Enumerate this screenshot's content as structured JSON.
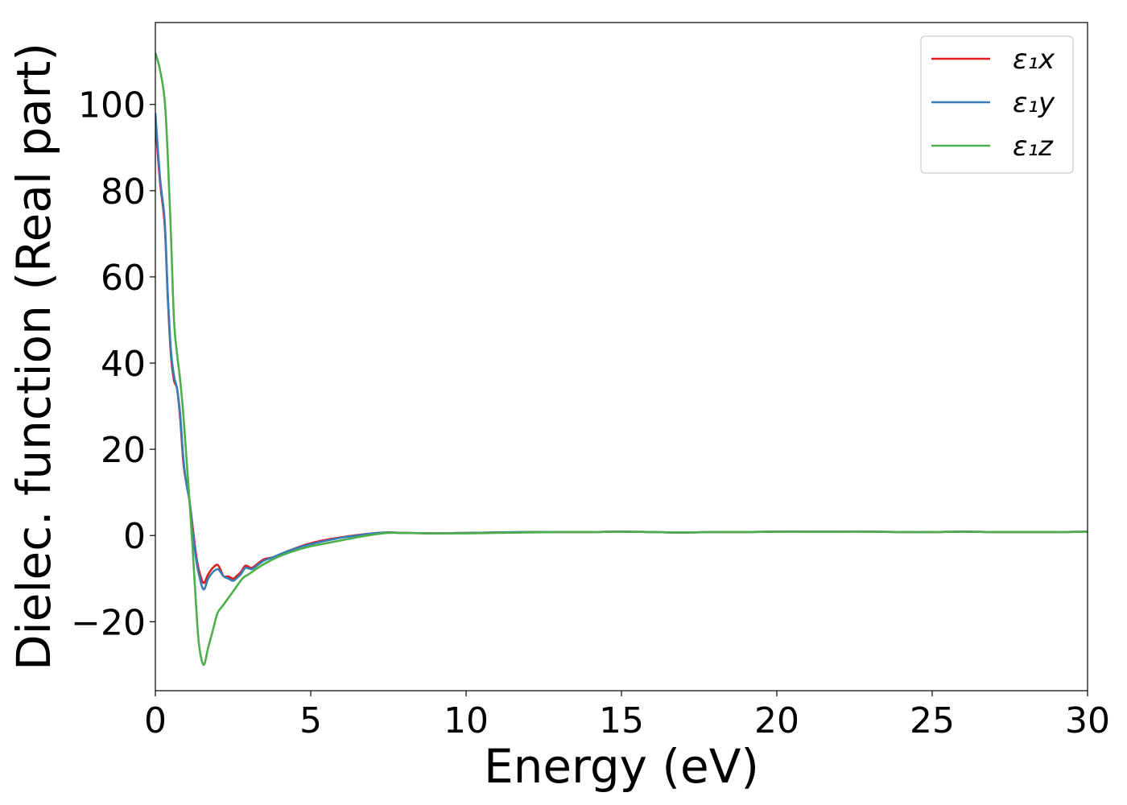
{
  "chart_data": {
    "type": "line",
    "xlabel": "Energy (eV)",
    "ylabel": "Dielec. function (Real part)",
    "xlim": [
      0,
      30
    ],
    "ylim": [
      -36,
      119
    ],
    "xticks": [
      0,
      5,
      10,
      15,
      20,
      25,
      30
    ],
    "xtick_labels": [
      "0",
      "5",
      "10",
      "15",
      "20",
      "25",
      "30"
    ],
    "yticks": [
      -20,
      0,
      20,
      40,
      60,
      80,
      100
    ],
    "ytick_labels": [
      "−20",
      "0",
      "20",
      "40",
      "60",
      "80",
      "100"
    ],
    "grid": false,
    "legend_position": "top-right",
    "series": [
      {
        "name": "ε₁x",
        "color": "#e41a1c",
        "x": [
          0,
          0.15,
          0.3,
          0.4,
          0.5,
          0.6,
          0.7,
          0.8,
          0.9,
          1.0,
          1.1,
          1.2,
          1.3,
          1.4,
          1.55,
          1.7,
          1.85,
          2.0,
          2.1,
          2.2,
          2.35,
          2.5,
          2.6,
          2.75,
          2.9,
          3.1,
          3.3,
          3.5,
          3.8,
          4.2,
          4.6,
          5.0,
          5.5,
          6.0,
          6.5,
          7.0,
          7.5,
          8,
          9,
          10,
          11,
          12,
          13,
          14,
          15,
          16,
          17,
          18,
          19,
          20,
          21,
          22,
          23,
          24,
          25,
          26,
          27,
          28,
          29,
          30
        ],
        "values": [
          96,
          82,
          72,
          55,
          42,
          36,
          34,
          27,
          17,
          12,
          8,
          2,
          -4,
          -8,
          -11,
          -9,
          -7.5,
          -6.8,
          -8,
          -9.5,
          -9.5,
          -10,
          -9.5,
          -8.5,
          -7,
          -7.5,
          -6.5,
          -5.5,
          -5,
          -3.8,
          -2.7,
          -1.8,
          -1,
          -0.4,
          0.1,
          0.5,
          0.7,
          0.6,
          0.5,
          0.6,
          0.7,
          0.8,
          0.8,
          0.8,
          0.9,
          0.8,
          0.7,
          0.8,
          0.8,
          0.9,
          0.9,
          0.9,
          0.9,
          0.8,
          0.8,
          0.9,
          0.8,
          0.8,
          0.8,
          0.9
        ]
      },
      {
        "name": "ε₁y",
        "color": "#377eb8",
        "x": [
          0,
          0.15,
          0.3,
          0.4,
          0.5,
          0.6,
          0.7,
          0.8,
          0.9,
          1.0,
          1.1,
          1.2,
          1.3,
          1.4,
          1.55,
          1.7,
          1.85,
          2.0,
          2.1,
          2.2,
          2.35,
          2.5,
          2.6,
          2.75,
          2.9,
          3.1,
          3.3,
          3.5,
          3.8,
          4.2,
          4.6,
          5.0,
          5.5,
          6.0,
          6.5,
          7.0,
          7.5,
          8,
          9,
          10,
          11,
          12,
          13,
          14,
          15,
          16,
          17,
          18,
          19,
          20,
          21,
          22,
          23,
          24,
          25,
          26,
          27,
          28,
          29,
          30
        ],
        "values": [
          98,
          83,
          73,
          56,
          43,
          37,
          34,
          28,
          18,
          12,
          8,
          1,
          -5,
          -9,
          -12.5,
          -10,
          -8.5,
          -7.8,
          -8.5,
          -9.5,
          -10,
          -10.5,
          -10,
          -9,
          -7.5,
          -7.8,
          -6.8,
          -5.8,
          -5,
          -3.8,
          -2.8,
          -2,
          -1.2,
          -0.5,
          0,
          0.5,
          0.7,
          0.6,
          0.5,
          0.6,
          0.7,
          0.8,
          0.8,
          0.8,
          0.9,
          0.8,
          0.7,
          0.8,
          0.8,
          0.9,
          0.9,
          0.9,
          0.9,
          0.8,
          0.8,
          0.9,
          0.8,
          0.8,
          0.8,
          0.9
        ]
      },
      {
        "name": "ε₁z",
        "color": "#4daf4a",
        "x": [
          0,
          0.15,
          0.3,
          0.4,
          0.5,
          0.6,
          0.7,
          0.8,
          0.9,
          1.0,
          1.1,
          1.2,
          1.3,
          1.4,
          1.55,
          1.7,
          1.85,
          2.0,
          2.2,
          2.5,
          2.8,
          3.0,
          3.3,
          3.6,
          4.0,
          4.5,
          5.0,
          5.5,
          6.0,
          6.5,
          7.0,
          7.5,
          8,
          9,
          10,
          11,
          12,
          13,
          14,
          15,
          16,
          17,
          18,
          19,
          20,
          21,
          22,
          23,
          24,
          25,
          26,
          27,
          28,
          29,
          30
        ],
        "values": [
          112,
          108,
          101,
          88,
          70,
          50,
          42,
          36,
          28,
          18,
          8,
          -3,
          -15,
          -25,
          -30,
          -26,
          -22,
          -18,
          -16,
          -13,
          -10,
          -9,
          -7.5,
          -6.2,
          -4.8,
          -3.5,
          -2.5,
          -1.8,
          -1.1,
          -0.4,
          0.2,
          0.6,
          0.6,
          0.5,
          0.5,
          0.6,
          0.7,
          0.8,
          0.8,
          0.9,
          0.8,
          0.7,
          0.8,
          0.8,
          0.9,
          0.9,
          0.9,
          0.9,
          0.8,
          0.8,
          0.9,
          0.8,
          0.8,
          0.8,
          0.9
        ]
      }
    ]
  }
}
